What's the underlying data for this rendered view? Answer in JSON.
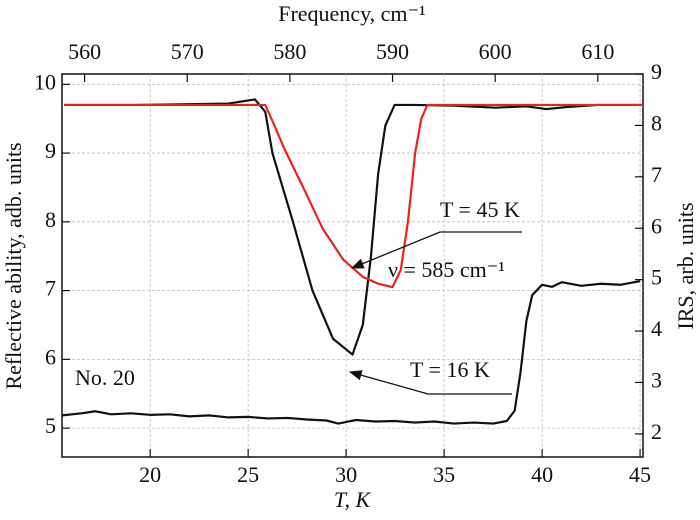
{
  "chart_data": {
    "type": "line",
    "x_label": "T, K",
    "x2_label": "Frequency, cm⁻¹",
    "y_label": "Reflective ability, adb. units",
    "y2_label": "IRS, arb. units",
    "xlim": [
      15.5,
      45.15
    ],
    "xticks": [
      20,
      25,
      30,
      35,
      40,
      45
    ],
    "x2lim": [
      557.8,
      614.4
    ],
    "x2ticks": [
      560,
      570,
      580,
      590,
      600,
      610
    ],
    "ylim": [
      4.58,
      10.15
    ],
    "yticks": [
      5,
      6,
      7,
      8,
      9,
      10
    ],
    "y2lim": [
      1.55,
      9
    ],
    "y2ticks": [
      2,
      3,
      4,
      5,
      6,
      7,
      8,
      9
    ],
    "grid": true,
    "annotations": [
      "T = 45 K",
      "ν = 585 cm⁻¹",
      "T = 16 K",
      "No. 20"
    ],
    "series": [
      {
        "color": "#111111",
        "x_axis": "x2",
        "x": [
          558,
          565,
          570,
          574,
          576.6,
          577.6,
          578.3,
          580.3,
          582.2,
          584.2,
          586.1,
          587.1,
          587.9,
          588.6,
          589.3,
          590.2,
          592,
          596,
          600,
          603,
          605,
          607,
          610,
          614.4
        ],
        "values": [
          9.7,
          9.7,
          9.71,
          9.72,
          9.78,
          9.6,
          9.0,
          8.0,
          7.0,
          6.3,
          6.07,
          6.5,
          7.5,
          8.7,
          9.4,
          9.7,
          9.7,
          9.69,
          9.66,
          9.68,
          9.64,
          9.67,
          9.7,
          9.7
        ]
      },
      {
        "color": "#e8231c",
        "x_axis": "x2",
        "x": [
          558,
          570,
          577.6,
          578.5,
          579.5,
          581.3,
          583.2,
          585.2,
          587.1,
          588.6,
          590,
          590.8,
          591.5,
          592.2,
          592.8,
          593.4,
          600,
          614.4
        ],
        "values": [
          9.7,
          9.7,
          9.7,
          9.4,
          9.05,
          8.5,
          7.9,
          7.45,
          7.2,
          7.1,
          7.05,
          7.3,
          8.0,
          9.0,
          9.5,
          9.7,
          9.7,
          9.7
        ]
      },
      {
        "color": "#111111",
        "axis": "y2",
        "x": [
          15.5,
          16.5,
          17.2,
          18,
          19,
          20,
          21,
          22,
          23,
          24,
          25,
          26,
          27,
          28,
          29,
          29.6,
          30.5,
          31.5,
          32.5,
          33.5,
          34.5,
          35.5,
          36.5,
          37.5,
          38.2,
          38.6,
          38.9,
          39.2,
          39.5,
          40,
          40.5,
          41,
          42,
          43,
          44,
          45
        ],
        "values": [
          2.36,
          2.4,
          2.44,
          2.38,
          2.4,
          2.37,
          2.38,
          2.34,
          2.36,
          2.32,
          2.33,
          2.3,
          2.31,
          2.28,
          2.26,
          2.2,
          2.27,
          2.24,
          2.25,
          2.22,
          2.24,
          2.2,
          2.22,
          2.2,
          2.25,
          2.45,
          3.2,
          4.2,
          4.7,
          4.9,
          4.86,
          4.95,
          4.88,
          4.92,
          4.9,
          4.97
        ]
      }
    ]
  }
}
